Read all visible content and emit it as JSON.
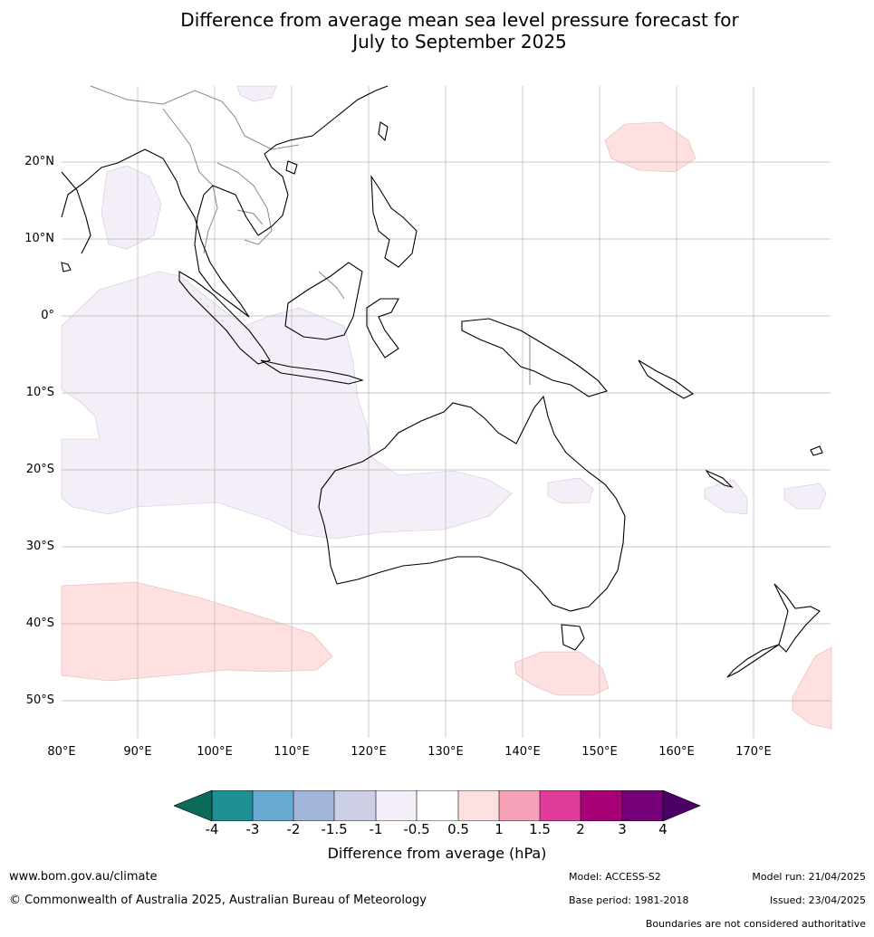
{
  "title_line1": "Difference from average mean sea level pressure forecast for",
  "title_line2": "July to September 2025",
  "lat_labels": [
    "20°N",
    "10°N",
    "0°",
    "10°S",
    "20°S",
    "30°S",
    "40°S",
    "50°S"
  ],
  "lon_labels": [
    "80°E",
    "90°E",
    "100°E",
    "110°E",
    "120°E",
    "130°E",
    "140°E",
    "150°E",
    "160°E",
    "170°E"
  ],
  "colorbar": {
    "colors": [
      "#0a6b5d",
      "#1e9096",
      "#69aad2",
      "#a2b6d9",
      "#cdcfe5",
      "#f3eef7",
      "#ffffff",
      "#fde0df",
      "#f6a1b8",
      "#df3c9c",
      "#a80077",
      "#75007a",
      "#4a0066"
    ],
    "ticks": [
      "-4",
      "-3",
      "-2",
      "-1.5",
      "-1",
      "-0.5",
      "0.5",
      "1",
      "1.5",
      "2",
      "3",
      "4"
    ],
    "label": "Difference from average (hPa)"
  },
  "footer": {
    "url": "www.bom.gov.au/climate",
    "copyright": "© Commonwealth of Australia 2025, Australian Bureau of Meteorology",
    "model": "Model: ACCESS-S2",
    "base_period": "Base period: 1981-2018",
    "model_run": "Model run: 21/04/2025",
    "issued": "Issued: 23/04/2025",
    "disclaimer": "Boundaries are not considered authoritative"
  }
}
